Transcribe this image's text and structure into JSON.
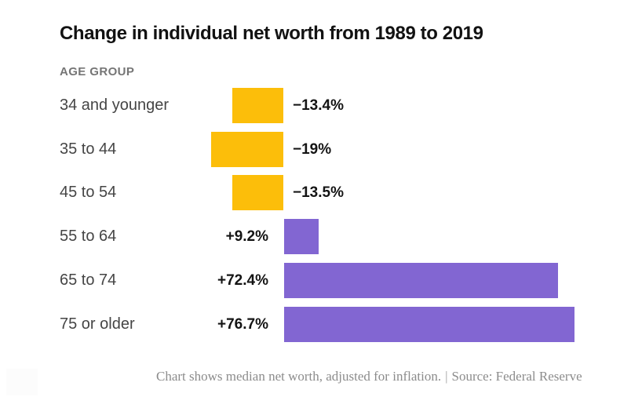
{
  "page": {
    "title": "Change in individual net worth from 1989 to 2019",
    "axis_label": "AGE GROUP",
    "footer_note": "Chart shows median net worth, adjusted for inflation.",
    "footer_separator": "|",
    "footer_source": "Source: Federal Reserve"
  },
  "chart_data": {
    "type": "bar",
    "orientation": "horizontal",
    "title": "Change in individual net worth from 1989 to 2019",
    "ylabel": "AGE GROUP",
    "xlabel": "",
    "categories": [
      "34 and younger",
      "35 to 44",
      "45 to 54",
      "55 to 64",
      "65 to 74",
      "75 or older"
    ],
    "values": [
      -13.4,
      -19,
      -13.5,
      9.2,
      72.4,
      76.7
    ],
    "value_labels": [
      "−13.4%",
      "−19%",
      "−13.5%",
      "+9.2%",
      "+72.4%",
      "+76.7%"
    ],
    "xlim": [
      -25,
      92
    ],
    "grid": false,
    "legend_position": "none",
    "colors": {
      "negative": "#fcbe0a",
      "positive": "#8266d2"
    },
    "note": "Chart shows median net worth, adjusted for inflation.",
    "source": "Source: Federal Reserve"
  }
}
